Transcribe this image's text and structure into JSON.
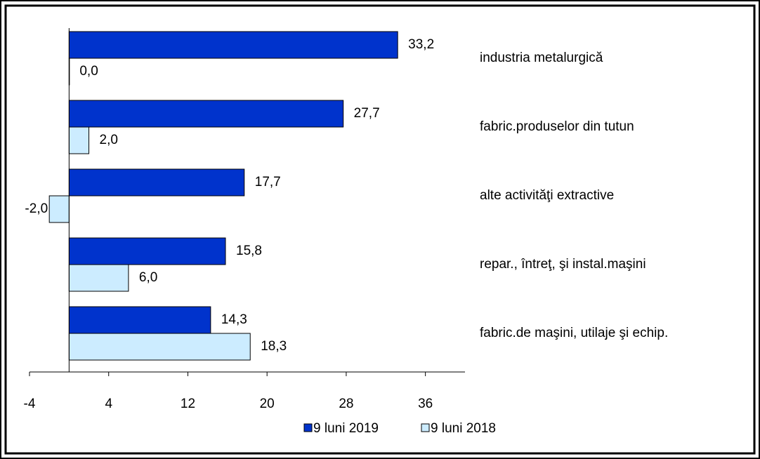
{
  "chart_data": {
    "type": "hbar",
    "categories": [
      "industria metalurgică",
      "fabric.produselor din tutun",
      "alte activităţi extractive",
      "repar., întreţ, şi instal.maşini",
      "fabric.de maşini, utilaje şi echip."
    ],
    "series": [
      {
        "name": "9 luni 2019",
        "color": "#0033cc",
        "values": [
          33.2,
          27.7,
          17.7,
          15.8,
          14.3
        ],
        "value_labels": [
          "33,2",
          "27,7",
          "17,7",
          "15,8",
          "14,3"
        ]
      },
      {
        "name": "9 luni 2018",
        "color": "#ccecff",
        "values": [
          0.0,
          2.0,
          -2.0,
          6.0,
          18.3
        ],
        "value_labels": [
          "0,0",
          "2,0",
          "-2,0",
          "6,0",
          "18,3"
        ]
      }
    ],
    "xlim": [
      -4,
      40
    ],
    "xticks": [
      -4,
      4,
      12,
      20,
      28,
      36
    ],
    "legend": "bottom"
  }
}
